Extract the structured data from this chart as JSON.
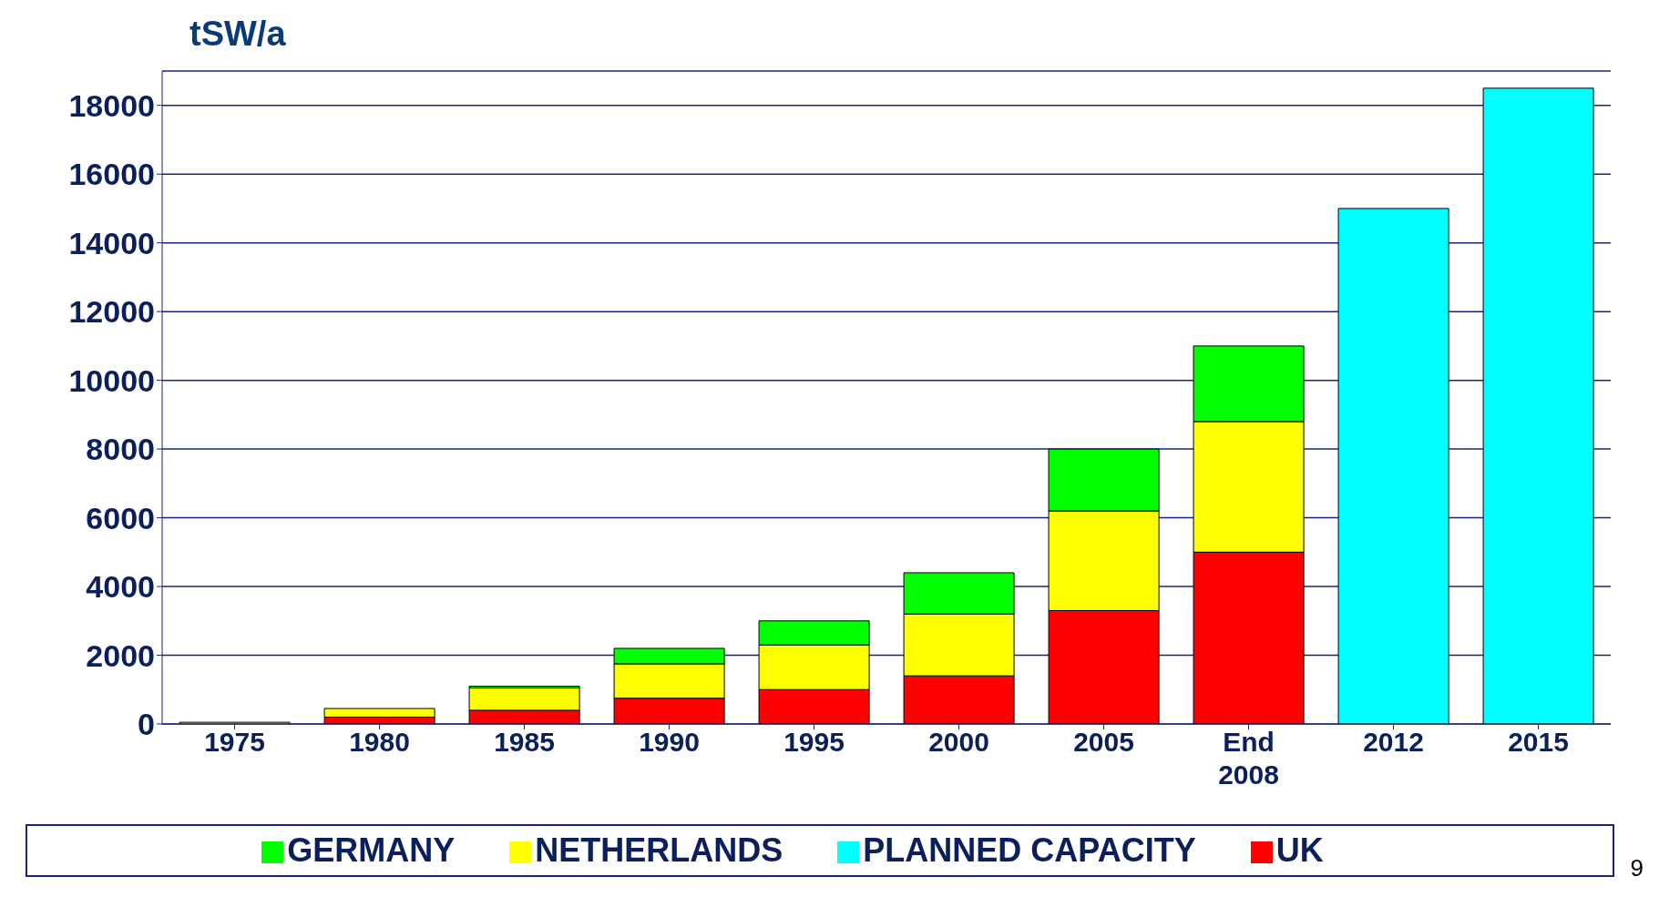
{
  "chart_data": {
    "type": "bar",
    "stacked": true,
    "ylabel": "tSW/a",
    "categories": [
      "1975",
      "1980",
      "1985",
      "1990",
      "1995",
      "2000",
      "2005",
      "End 2008",
      "2012",
      "2015"
    ],
    "series": [
      {
        "name": "UK",
        "color": "#ff0000",
        "values": [
          0,
          200,
          400,
          750,
          1000,
          1400,
          3300,
          5000,
          null,
          null
        ]
      },
      {
        "name": "NETHERLANDS",
        "color": "#ffff00",
        "values": [
          50,
          250,
          650,
          1000,
          1300,
          1800,
          2900,
          3800,
          null,
          null
        ]
      },
      {
        "name": "GERMANY",
        "color": "#00ff00",
        "values": [
          0,
          0,
          50,
          450,
          700,
          1200,
          1800,
          2200,
          null,
          null
        ]
      },
      {
        "name": "PLANNED CAPACITY",
        "color": "#00ffff",
        "values": [
          null,
          null,
          null,
          null,
          null,
          null,
          null,
          null,
          15000,
          18500
        ]
      }
    ],
    "ylim": [
      0,
      19000
    ],
    "yticks": [
      0,
      2000,
      4000,
      6000,
      8000,
      10000,
      12000,
      14000,
      16000,
      18000
    ],
    "grid": "y",
    "legend": "bottom",
    "annotations": [
      "9"
    ]
  }
}
